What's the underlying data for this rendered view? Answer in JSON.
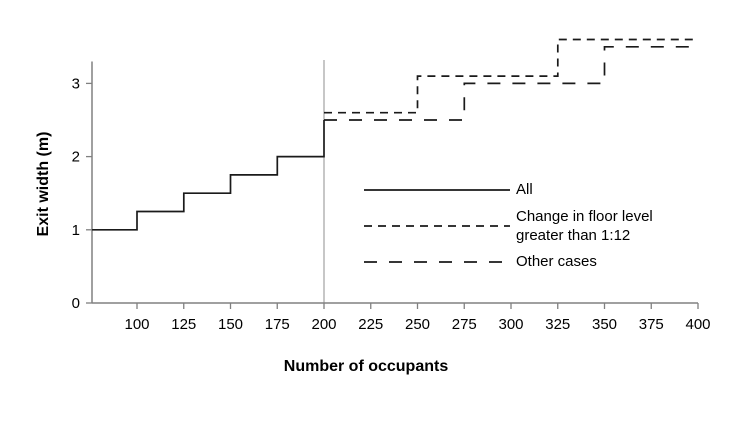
{
  "chart_data": {
    "type": "line",
    "subtype": "step",
    "title": "",
    "xlabel": "Number of occupants",
    "ylabel": "Exit width (m)",
    "xlim": [
      76,
      400
    ],
    "ylim": [
      0,
      3.3
    ],
    "x_ticks": [
      100,
      125,
      150,
      175,
      200,
      225,
      250,
      275,
      300,
      325,
      350,
      375,
      400
    ],
    "y_ticks": [
      0,
      1,
      2,
      3
    ],
    "grid": "off",
    "reference_line_x": 200,
    "legend_position": "inside-center-right",
    "series": [
      {
        "name": "All",
        "style": "solid",
        "points": [
          [
            76,
            1.0
          ],
          [
            100,
            1.0
          ],
          [
            100,
            1.25
          ],
          [
            125,
            1.25
          ],
          [
            125,
            1.5
          ],
          [
            150,
            1.5
          ],
          [
            150,
            1.75
          ],
          [
            175,
            1.75
          ],
          [
            175,
            2.0
          ],
          [
            200,
            2.0
          ],
          [
            200,
            2.5
          ]
        ]
      },
      {
        "name": "Change in floor level greater than 1:12",
        "style": "short-dash",
        "points": [
          [
            200,
            2.6
          ],
          [
            250,
            2.6
          ],
          [
            250,
            3.1
          ],
          [
            325,
            3.1
          ],
          [
            325,
            3.6
          ],
          [
            400,
            3.6
          ]
        ]
      },
      {
        "name": "Other cases",
        "style": "long-dash",
        "points": [
          [
            200,
            2.5
          ],
          [
            275,
            2.5
          ],
          [
            275,
            3.0
          ],
          [
            350,
            3.0
          ],
          [
            350,
            3.5
          ],
          [
            400,
            3.5
          ]
        ]
      }
    ],
    "colors": {
      "line": "#1a1a1a",
      "axis": "#808080",
      "reference_line": "#8f8f8f",
      "text": "#000000",
      "background": "#ffffff"
    }
  }
}
